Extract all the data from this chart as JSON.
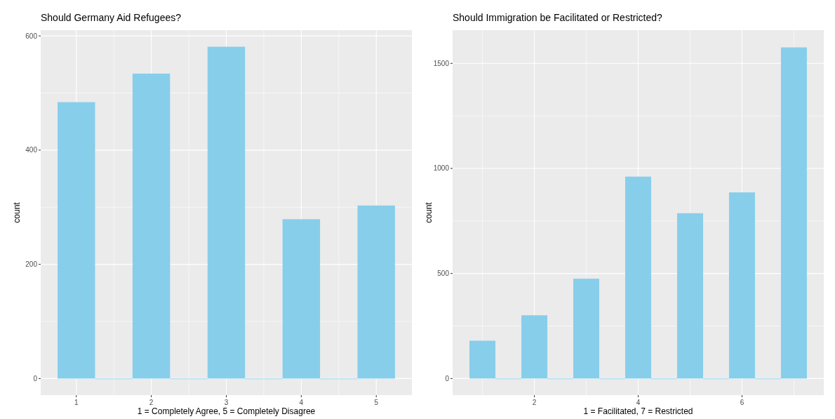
{
  "chart_data": [
    {
      "type": "histogram",
      "title": "Should Germany Aid Refugees?",
      "xlabel": "1 = Completely Agree, 5 = Completely Disagree",
      "ylabel": "count",
      "bins": [
        0.75,
        1.25,
        1.75,
        2.25,
        2.75,
        3.25,
        3.75,
        4.25,
        4.75,
        5.25
      ],
      "values": [
        484,
        0,
        534,
        0,
        581,
        0,
        279,
        0,
        303
      ],
      "color": "#87ceeb",
      "xlim": [
        0.525,
        5.475
      ],
      "xticks": [
        1,
        2,
        3,
        4,
        5
      ],
      "ylim": [
        -29,
        610
      ],
      "yticks": [
        0,
        200,
        400,
        600
      ],
      "grid": true
    },
    {
      "type": "histogram",
      "title": "Should Immigration be Facilitated or Restricted?",
      "xlabel": "1 = Facilitated, 7 = Restricted",
      "ylabel": "count",
      "bins": [
        0.75,
        1.25,
        1.75,
        2.25,
        2.75,
        3.25,
        3.75,
        4.25,
        4.75,
        5.25,
        5.75,
        6.25,
        6.75,
        7.25
      ],
      "values": [
        180,
        0,
        301,
        0,
        475,
        0,
        961,
        0,
        787,
        0,
        886,
        0,
        1576
      ],
      "color": "#87ceeb",
      "xlim": [
        0.425,
        7.575
      ],
      "xticks": [
        2,
        4,
        6
      ],
      "ylim": [
        -79,
        1658
      ],
      "yticks": [
        0,
        500,
        1000,
        1500
      ],
      "grid": true
    }
  ]
}
